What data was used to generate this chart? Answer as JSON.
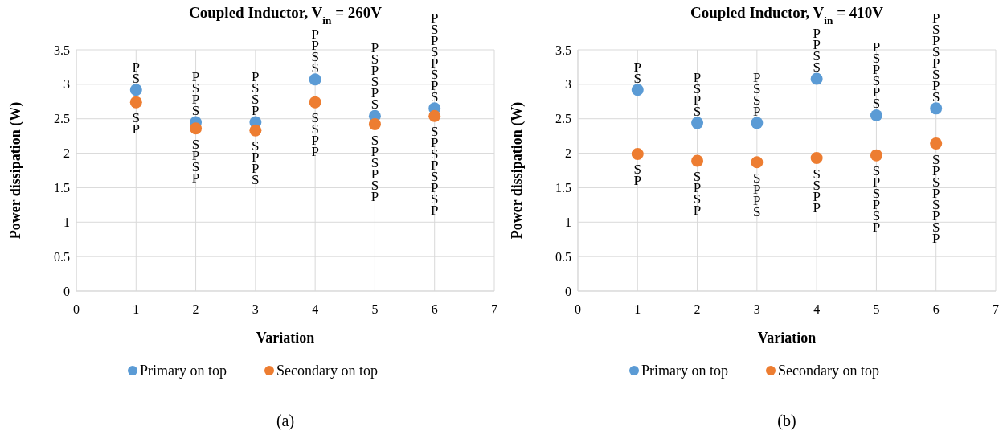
{
  "chart_data": [
    {
      "type": "scatter",
      "title": "Coupled Inductor, V$_{in}$ = 260V",
      "xlabel": "Variation",
      "ylabel": "Power dissipation  (W)",
      "xlim": [
        0,
        7
      ],
      "xticks": [
        0,
        1,
        2,
        3,
        4,
        5,
        6,
        7
      ],
      "ylim": [
        0,
        3.5
      ],
      "yticks": [
        0,
        0.5,
        1,
        1.5,
        2,
        2.5,
        3,
        3.5
      ],
      "grid": true,
      "legend": "bottom",
      "marker": "circle",
      "x": [
        1,
        2,
        3,
        4,
        5,
        6
      ],
      "series": [
        {
          "name": "Primary on top",
          "color": "#5b9bd5",
          "values": [
            2.92,
            2.45,
            2.45,
            3.07,
            2.54,
            2.65
          ]
        },
        {
          "name": "Secondary on top",
          "color": "#ed7d31",
          "values": [
            2.74,
            2.36,
            2.33,
            2.74,
            2.42,
            2.54
          ]
        }
      ],
      "annotations": [
        "PS",
        "SP",
        "PSPS",
        "SPSP",
        "PSSP",
        "SPPS",
        "PPSS",
        "SSPP",
        "PSPSPS",
        "SPSPSP",
        "PSPSPSPS",
        "SPSPSPSP",
        "(a)"
      ]
    },
    {
      "type": "scatter",
      "title": "Coupled Inductor, V$_{in}$ = 410V",
      "xlabel": "Variation",
      "ylabel": "Power dissipation  (W)",
      "xlim": [
        0,
        7
      ],
      "xticks": [
        0,
        1,
        2,
        3,
        4,
        5,
        6,
        7
      ],
      "ylim": [
        0,
        3.5
      ],
      "yticks": [
        0,
        0.5,
        1,
        1.5,
        2,
        2.5,
        3,
        3.5
      ],
      "grid": true,
      "legend": "bottom",
      "marker": "circle",
      "x": [
        1,
        2,
        3,
        4,
        5,
        6
      ],
      "series": [
        {
          "name": "Primary on top",
          "color": "#5b9bd5",
          "values": [
            2.92,
            2.44,
            2.44,
            3.08,
            2.55,
            2.65
          ]
        },
        {
          "name": "Secondary on top",
          "color": "#ed7d31",
          "values": [
            1.99,
            1.89,
            1.87,
            1.93,
            1.97,
            2.14
          ]
        }
      ],
      "annotations": [
        "PS",
        "SP",
        "PSPS",
        "SPSP",
        "PSSP",
        "SPPS",
        "PPSS",
        "SSPP",
        "PSPSPS",
        "SPSPSP",
        "PSPSPSPS",
        "SPSPSPSP",
        "(b)"
      ]
    }
  ]
}
